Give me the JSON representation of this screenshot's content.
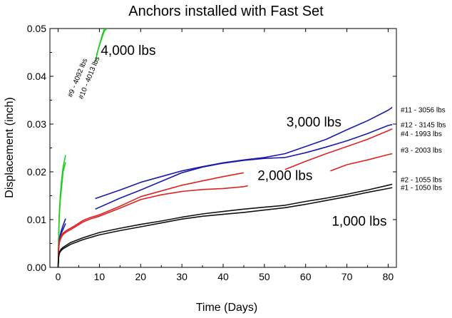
{
  "chart_data": {
    "type": "line",
    "title": "Anchors installed with Fast Set",
    "xlabel": "Time (Days)",
    "ylabel": "Displacement (inch)",
    "xlim": [
      -2,
      82
    ],
    "ylim": [
      0,
      0.05
    ],
    "xticks": [
      0,
      10,
      20,
      30,
      40,
      50,
      60,
      70,
      80
    ],
    "yticks": [
      0,
      0.01,
      0.02,
      0.03,
      0.04,
      0.05
    ],
    "xtick_labels": [
      "0",
      "10",
      "20",
      "30",
      "40",
      "50",
      "60",
      "70",
      "80"
    ],
    "ytick_labels": [
      "0.00",
      "0.01",
      "0.02",
      "0.03",
      "0.04",
      "0.05"
    ],
    "load_labels": [
      {
        "text": "4,000 lbs",
        "x": 17,
        "y": 0.0445
      },
      {
        "text": "3,000 lbs",
        "x": 62,
        "y": 0.0295
      },
      {
        "text": "2,000 lbs",
        "x": 55,
        "y": 0.0183
      },
      {
        "text": "1,000 lbs",
        "x": 73,
        "y": 0.0087
      }
    ],
    "series": [
      {
        "name": "#9 - 4092 lbs",
        "color": "#22cc22",
        "label_pos": {
          "x": 5.2,
          "y": 0.0395,
          "angle": -68
        },
        "segments": [
          [
            [
              0,
              0
            ],
            [
              0.1,
              0.006
            ],
            [
              0.25,
              0.011
            ],
            [
              0.5,
              0.015
            ],
            [
              0.8,
              0.018
            ],
            [
              1.2,
              0.021
            ],
            [
              1.8,
              0.0235
            ]
          ],
          [
            [
              9,
              0.043
            ],
            [
              9.8,
              0.046
            ],
            [
              10.8,
              0.049
            ],
            [
              11.5,
              0.0505
            ]
          ]
        ]
      },
      {
        "name": "#10 - 4013 lbs",
        "color": "#22cc22",
        "label_pos": {
          "x": 8.0,
          "y": 0.0395,
          "angle": -68
        },
        "segments": [
          [
            [
              0,
              0
            ],
            [
              0.1,
              0.005
            ],
            [
              0.25,
              0.01
            ],
            [
              0.5,
              0.014
            ],
            [
              0.8,
              0.0165
            ],
            [
              1.2,
              0.02
            ],
            [
              1.8,
              0.022
            ]
          ],
          [
            [
              9.3,
              0.0445
            ],
            [
              10.2,
              0.047
            ],
            [
              11.2,
              0.0495
            ],
            [
              12.5,
              0.0505
            ]
          ]
        ]
      },
      {
        "name": "#11 - 3056 lbs",
        "color": "#1a1aaa",
        "label_pos": {
          "x": 86,
          "y": 0.0325
        },
        "segments": [
          [
            [
              0,
              0
            ],
            [
              0.1,
              0.004
            ],
            [
              0.3,
              0.006
            ],
            [
              0.7,
              0.0075
            ],
            [
              1.2,
              0.0088
            ],
            [
              1.8,
              0.0102
            ]
          ],
          [
            [
              9,
              0.0144
            ],
            [
              15,
              0.0162
            ],
            [
              20,
              0.0178
            ],
            [
              25,
              0.019
            ],
            [
              30,
              0.0202
            ],
            [
              35,
              0.0211
            ],
            [
              40,
              0.0219
            ],
            [
              45,
              0.0225
            ],
            [
              50,
              0.023
            ],
            [
              55,
              0.0238
            ],
            [
              60,
              0.0253
            ],
            [
              65,
              0.0268
            ],
            [
              70,
              0.0288
            ],
            [
              75,
              0.0307
            ],
            [
              80,
              0.0329
            ],
            [
              81,
              0.0335
            ]
          ]
        ]
      },
      {
        "name": "#12 - 3145 lbs",
        "color": "#1a1aaa",
        "label_pos": {
          "x": 86,
          "y": 0.0293
        },
        "segments": [
          [
            [
              0,
              0
            ],
            [
              0.1,
              0.0035
            ],
            [
              0.3,
              0.0055
            ],
            [
              0.7,
              0.007
            ],
            [
              1.2,
              0.008
            ],
            [
              1.8,
              0.0092
            ]
          ],
          [
            [
              9,
              0.0122
            ],
            [
              15,
              0.0145
            ],
            [
              20,
              0.0162
            ],
            [
              25,
              0.018
            ],
            [
              30,
              0.0198
            ],
            [
              35,
              0.021
            ],
            [
              40,
              0.0218
            ],
            [
              45,
              0.0224
            ],
            [
              50,
              0.0228
            ],
            [
              55,
              0.023
            ],
            [
              60,
              0.024
            ],
            [
              65,
              0.0252
            ],
            [
              70,
              0.0265
            ],
            [
              75,
              0.028
            ],
            [
              80,
              0.0297
            ],
            [
              81,
              0.0299
            ]
          ]
        ]
      },
      {
        "name": "#4 - 1993 lbs",
        "color": "#dd2222",
        "label_pos": {
          "x": 86,
          "y": 0.0275
        },
        "segments": [
          [
            [
              0,
              0
            ],
            [
              0.1,
              0.004
            ],
            [
              0.3,
              0.0055
            ],
            [
              0.7,
              0.0065
            ],
            [
              1.2,
              0.0072
            ],
            [
              2,
              0.0077
            ],
            [
              4,
              0.0087
            ],
            [
              6,
              0.0098
            ],
            [
              8,
              0.0105
            ],
            [
              10,
              0.011
            ],
            [
              15,
              0.0128
            ],
            [
              20,
              0.0148
            ],
            [
              25,
              0.016
            ],
            [
              30,
              0.0172
            ],
            [
              35,
              0.0181
            ],
            [
              40,
              0.019
            ],
            [
              45,
              0.0198
            ]
          ],
          [
            [
              55,
              0.0205
            ],
            [
              60,
              0.0222
            ],
            [
              65,
              0.0238
            ],
            [
              70,
              0.0253
            ],
            [
              75,
              0.0268
            ],
            [
              80,
              0.0286
            ],
            [
              81,
              0.029
            ]
          ]
        ]
      },
      {
        "name": "#3 - 2003 lbs",
        "color": "#dd2222",
        "label_pos": {
          "x": 86,
          "y": 0.024
        },
        "segments": [
          [
            [
              0,
              0
            ],
            [
              0.1,
              0.0038
            ],
            [
              0.3,
              0.0052
            ],
            [
              0.7,
              0.0062
            ],
            [
              1.2,
              0.0069
            ],
            [
              2,
              0.0074
            ],
            [
              4,
              0.0084
            ],
            [
              6,
              0.0095
            ],
            [
              8,
              0.0102
            ],
            [
              10,
              0.0107
            ],
            [
              15,
              0.0124
            ],
            [
              20,
              0.0142
            ],
            [
              25,
              0.0152
            ],
            [
              30,
              0.0159
            ],
            [
              35,
              0.0163
            ],
            [
              40,
              0.0165
            ],
            [
              45,
              0.0169
            ],
            [
              46,
              0.0171
            ]
          ],
          [
            [
              66,
              0.0202
            ],
            [
              70,
              0.0215
            ],
            [
              75,
              0.0225
            ],
            [
              80,
              0.0236
            ],
            [
              81,
              0.0238
            ]
          ]
        ]
      },
      {
        "name": "#2 - 1055 lbs",
        "color": "#111111",
        "label_pos": {
          "x": 86,
          "y": 0.0178
        },
        "segments": [
          [
            [
              0,
              0
            ],
            [
              0.1,
              0.0022
            ],
            [
              0.3,
              0.0032
            ],
            [
              0.7,
              0.0038
            ],
            [
              1.2,
              0.0042
            ],
            [
              3,
              0.0052
            ],
            [
              6,
              0.0062
            ],
            [
              10,
              0.0073
            ],
            [
              15,
              0.0082
            ],
            [
              20,
              0.009
            ],
            [
              25,
              0.0097
            ],
            [
              30,
              0.0105
            ],
            [
              35,
              0.0112
            ],
            [
              40,
              0.0117
            ],
            [
              45,
              0.0122
            ],
            [
              50,
              0.0126
            ],
            [
              55,
              0.013
            ],
            [
              60,
              0.0138
            ],
            [
              65,
              0.0145
            ],
            [
              70,
              0.0153
            ],
            [
              75,
              0.0162
            ],
            [
              80,
              0.0172
            ],
            [
              81,
              0.0174
            ]
          ]
        ]
      },
      {
        "name": "#1 - 1050 lbs",
        "color": "#111111",
        "label_pos": {
          "x": 86,
          "y": 0.0162
        },
        "segments": [
          [
            [
              0,
              0
            ],
            [
              0.1,
              0.002
            ],
            [
              0.3,
              0.003
            ],
            [
              0.7,
              0.0035
            ],
            [
              1.2,
              0.0039
            ],
            [
              3,
              0.0048
            ],
            [
              6,
              0.0058
            ],
            [
              10,
              0.0068
            ],
            [
              15,
              0.0077
            ],
            [
              20,
              0.0085
            ],
            [
              25,
              0.0093
            ],
            [
              30,
              0.0101
            ],
            [
              35,
              0.0107
            ],
            [
              40,
              0.0111
            ],
            [
              45,
              0.0115
            ],
            [
              50,
              0.012
            ],
            [
              55,
              0.0125
            ],
            [
              60,
              0.0132
            ],
            [
              65,
              0.014
            ],
            [
              70,
              0.0148
            ],
            [
              75,
              0.0157
            ],
            [
              80,
              0.0165
            ],
            [
              81,
              0.0167
            ]
          ]
        ]
      }
    ]
  }
}
